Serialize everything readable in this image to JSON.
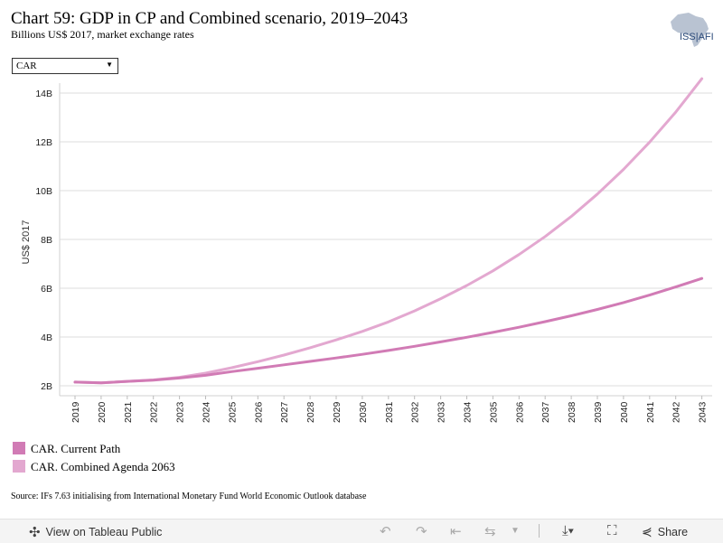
{
  "header": {
    "title": "Chart 59: GDP in CP and Combined scenario, 2019–2043",
    "subtitle": "Billions US$ 2017, market exchange rates",
    "logo_text": "ISS|AFI"
  },
  "filter": {
    "selected": "CAR"
  },
  "chart_data": {
    "type": "line",
    "ylabel": "US$ 2017",
    "x": [
      "2019",
      "2020",
      "2021",
      "2022",
      "2023",
      "2024",
      "2025",
      "2026",
      "2027",
      "2028",
      "2029",
      "2030",
      "2031",
      "2032",
      "2033",
      "2034",
      "2035",
      "2036",
      "2037",
      "2038",
      "2039",
      "2040",
      "2041",
      "2042",
      "2043"
    ],
    "y_ticks": [
      "2B",
      "4B",
      "6B",
      "8B",
      "10B",
      "12B",
      "14B"
    ],
    "ylim": [
      2,
      14
    ],
    "grid": true,
    "series": [
      {
        "name": "CAR. Current Path",
        "color": "#d17bb5",
        "values": [
          2.15,
          2.12,
          2.18,
          2.23,
          2.32,
          2.43,
          2.58,
          2.72,
          2.86,
          3.0,
          3.14,
          3.29,
          3.45,
          3.62,
          3.8,
          3.99,
          4.19,
          4.4,
          4.63,
          4.87,
          5.13,
          5.41,
          5.72,
          6.05,
          6.4
        ]
      },
      {
        "name": "CAR. Combined Agenda 2063",
        "color": "#e3a8d0",
        "values": [
          2.15,
          2.12,
          2.18,
          2.24,
          2.35,
          2.52,
          2.74,
          2.99,
          3.26,
          3.56,
          3.88,
          4.23,
          4.62,
          5.07,
          5.57,
          6.11,
          6.71,
          7.38,
          8.12,
          8.94,
          9.86,
          10.87,
          11.99,
          13.22,
          14.59
        ]
      }
    ]
  },
  "source": "Source: IFs 7.63 initialising from International Monetary Fund World Economic Outlook database",
  "footer": {
    "view_label": "View on Tableau Public",
    "share_label": "Share"
  }
}
